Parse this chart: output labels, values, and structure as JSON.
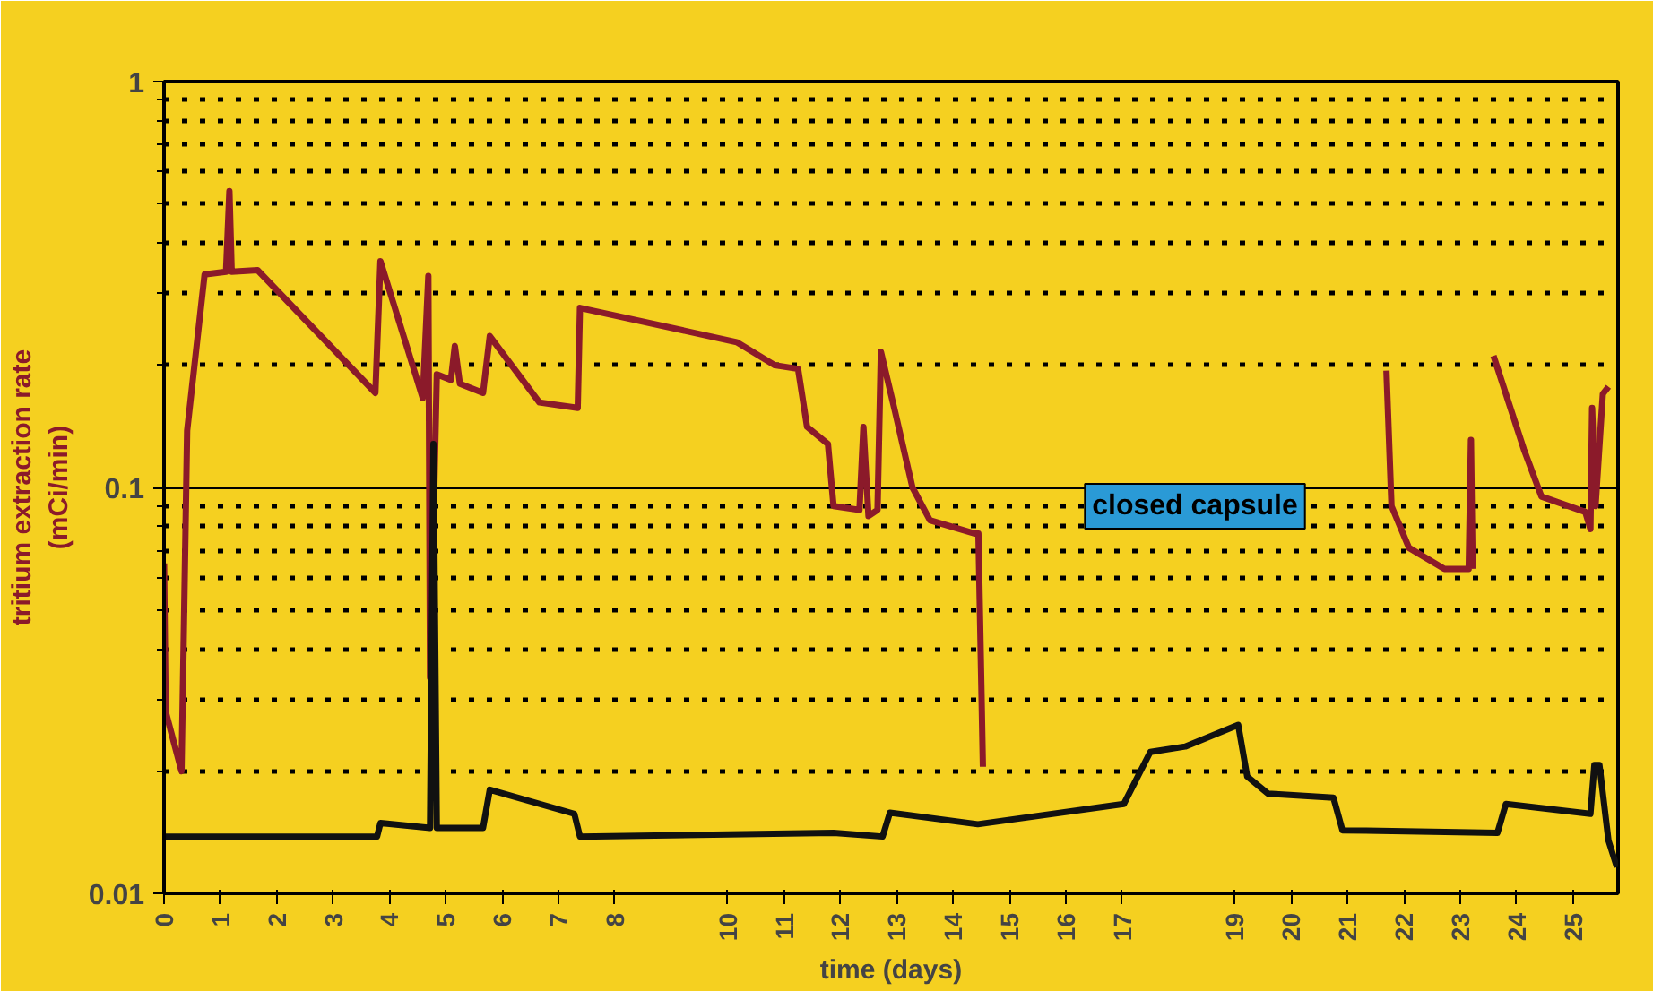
{
  "chart_data": {
    "type": "line",
    "xlabel": "time (days)",
    "ylabel": "tritium extraction rate\n(mCi/min)",
    "xlim": [
      0,
      25.8
    ],
    "ylim": [
      0.01,
      1
    ],
    "yticks": [
      0.01,
      0.1,
      1
    ],
    "log": "y",
    "grid": "y",
    "line_style": "solid",
    "marker": "none",
    "xticks": [
      0,
      1,
      2,
      3,
      4,
      5,
      6,
      7,
      8,
      10,
      11,
      12,
      13,
      14,
      15,
      16,
      17,
      19,
      20,
      21,
      22,
      23,
      24,
      25
    ],
    "annotations": [
      "closed capsule"
    ],
    "series": [
      {
        "color": "#8b1a2a",
        "x": [
          0,
          0.03,
          0.31,
          0.41,
          0.72,
          1.1,
          1.16,
          1.2,
          1.66,
          3.75,
          3.84,
          4.59,
          4.69,
          4.72,
          4.84,
          5.09,
          5.16,
          5.25,
          5.66,
          5.78,
          6.66,
          7.34,
          7.38,
          10.16,
          10.84,
          11.25,
          11.41,
          11.78,
          11.88,
          12.34,
          12.41,
          12.5,
          12.66,
          12.72,
          12.97,
          13.28,
          13.59,
          14.38,
          14.45,
          14.53,
          17,
          21.69,
          21.78,
          22.09,
          22.72,
          23.15,
          23.19,
          23.22,
          23.4,
          23.59,
          24.13,
          24.44,
          25.22,
          25.31,
          25.34,
          25.4,
          25.53,
          25.63
        ],
        "values": [
          0.065,
          0.028,
          0.02,
          0.138,
          0.335,
          0.34,
          0.537,
          0.34,
          0.343,
          0.171,
          0.361,
          0.166,
          0.332,
          0.034,
          0.19,
          0.184,
          0.223,
          0.18,
          0.171,
          0.236,
          0.162,
          0.157,
          0.277,
          0.228,
          0.2,
          0.196,
          0.141,
          0.128,
          0.09,
          0.088,
          0.141,
          0.085,
          0.088,
          0.216,
          0.154,
          0.1,
          0.083,
          0.077,
          0.077,
          0.0205,
          null,
          0.194,
          0.09,
          0.071,
          0.063,
          0.063,
          0.131,
          0.063,
          null,
          0.211,
          0.124,
          0.095,
          0.087,
          0.079,
          0.157,
          0.09,
          0.17,
          0.177
        ]
      },
      {
        "color": "#111111",
        "x": [
          0,
          3.78,
          3.84,
          4.72,
          4.78,
          4.84,
          5.66,
          5.78,
          7.28,
          7.38,
          11.88,
          12.75,
          12.88,
          14.44,
          17.03,
          17.5,
          18.12,
          19.06,
          19.22,
          19.59,
          20.75,
          20.91,
          23.66,
          23.81,
          25.31,
          25.38,
          25.47,
          25.63,
          25.78
        ],
        "values": [
          0.0138,
          0.0138,
          0.0149,
          0.0145,
          0.128,
          0.0145,
          0.0145,
          0.018,
          0.0157,
          0.0138,
          0.0141,
          0.0138,
          0.0158,
          0.0148,
          0.0166,
          0.0223,
          0.023,
          0.026,
          0.0194,
          0.0176,
          0.0172,
          0.0143,
          0.0141,
          0.0166,
          0.0157,
          0.0207,
          0.0207,
          0.0135,
          0.0116
        ]
      }
    ]
  }
}
